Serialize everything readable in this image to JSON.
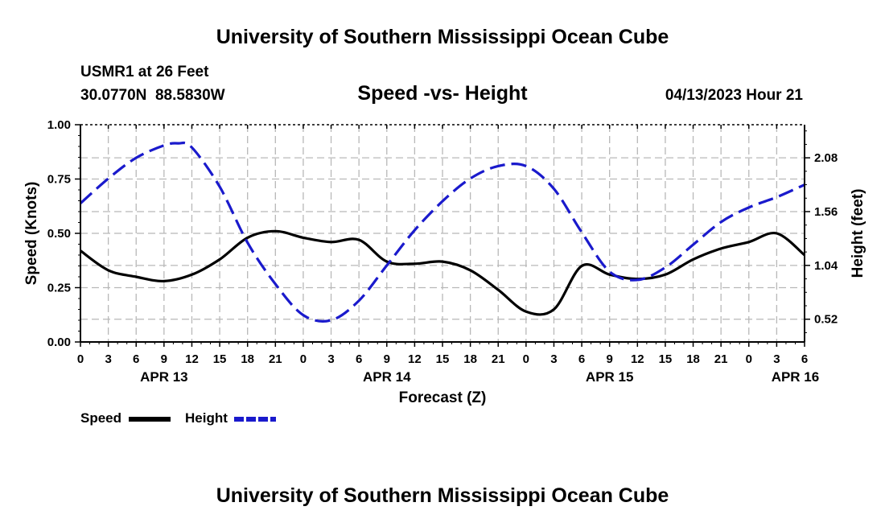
{
  "page": {
    "title_top": "University of Southern Mississippi Ocean Cube",
    "title_bottom": "University of Southern Mississippi Ocean Cube"
  },
  "station": {
    "name": "USMR1 at 26 Feet",
    "coords": "30.0770N  88.5830W",
    "datetime": "04/13/2023 Hour 21"
  },
  "chart_data": {
    "type": "line",
    "title": "Speed -vs- Height",
    "xlabel": "Forecast (Z)",
    "ylabel": "Speed (Knots)",
    "y2label": "Height (feet)",
    "x_range": [
      0,
      78
    ],
    "ylim": [
      0,
      1.0
    ],
    "y2lim": [
      0.3,
      2.4
    ],
    "x_ticks": [
      0,
      3,
      6,
      9,
      12,
      15,
      18,
      21,
      24,
      27,
      30,
      33,
      36,
      39,
      42,
      45,
      48,
      51,
      54,
      57,
      60,
      63,
      66,
      69,
      72,
      75,
      78
    ],
    "x_tick_labels": [
      "0",
      "3",
      "6",
      "9",
      "12",
      "15",
      "18",
      "21",
      "0",
      "3",
      "6",
      "9",
      "12",
      "15",
      "18",
      "21",
      "0",
      "3",
      "6",
      "9",
      "12",
      "15",
      "18",
      "21",
      "0",
      "3",
      "6"
    ],
    "date_labels": [
      {
        "x": 9,
        "label": "APR 13"
      },
      {
        "x": 33,
        "label": "APR 14"
      },
      {
        "x": 57,
        "label": "APR 15"
      },
      {
        "x": 77,
        "label": "APR 16"
      }
    ],
    "y_ticks": [
      0.0,
      0.25,
      0.5,
      0.75,
      1.0
    ],
    "y_tick_labels": [
      "0.00",
      "0.25",
      "0.50",
      "0.75",
      "1.00"
    ],
    "y2_ticks": [
      0.52,
      1.04,
      1.56,
      2.08
    ],
    "y2_tick_labels": [
      "0.52",
      "1.04",
      "1.56",
      "2.08"
    ],
    "grid": true,
    "legend": [
      {
        "name": "Speed",
        "color": "#000000",
        "dash": "solid"
      },
      {
        "name": "Height",
        "color": "#1a1acc",
        "dash": "dashed"
      }
    ],
    "series": [
      {
        "name": "Speed",
        "axis": "left",
        "color": "#000000",
        "x": [
          0,
          3,
          6,
          9,
          12,
          15,
          18,
          21,
          24,
          27,
          30,
          33,
          36,
          39,
          42,
          45,
          48,
          51,
          54,
          57,
          60,
          63,
          66,
          69,
          72,
          75,
          78
        ],
        "values": [
          0.42,
          0.33,
          0.3,
          0.28,
          0.31,
          0.38,
          0.48,
          0.51,
          0.48,
          0.46,
          0.47,
          0.37,
          0.36,
          0.37,
          0.33,
          0.24,
          0.14,
          0.15,
          0.35,
          0.31,
          0.29,
          0.31,
          0.38,
          0.43,
          0.46,
          0.5,
          0.4
        ]
      },
      {
        "name": "Height",
        "axis": "right",
        "color": "#1a1acc",
        "x": [
          0,
          3,
          6,
          9,
          10.5,
          12,
          15,
          18,
          21,
          24,
          27,
          30,
          33,
          36,
          39,
          42,
          45,
          48,
          51,
          54,
          57,
          60,
          63,
          66,
          69,
          72,
          75,
          78
        ],
        "values": [
          1.64,
          1.88,
          2.08,
          2.2,
          2.22,
          2.18,
          1.8,
          1.26,
          0.86,
          0.56,
          0.51,
          0.7,
          1.04,
          1.38,
          1.66,
          1.88,
          2.0,
          2.0,
          1.78,
          1.36,
          0.98,
          0.9,
          1.02,
          1.24,
          1.46,
          1.6,
          1.7,
          1.82
        ]
      }
    ]
  }
}
